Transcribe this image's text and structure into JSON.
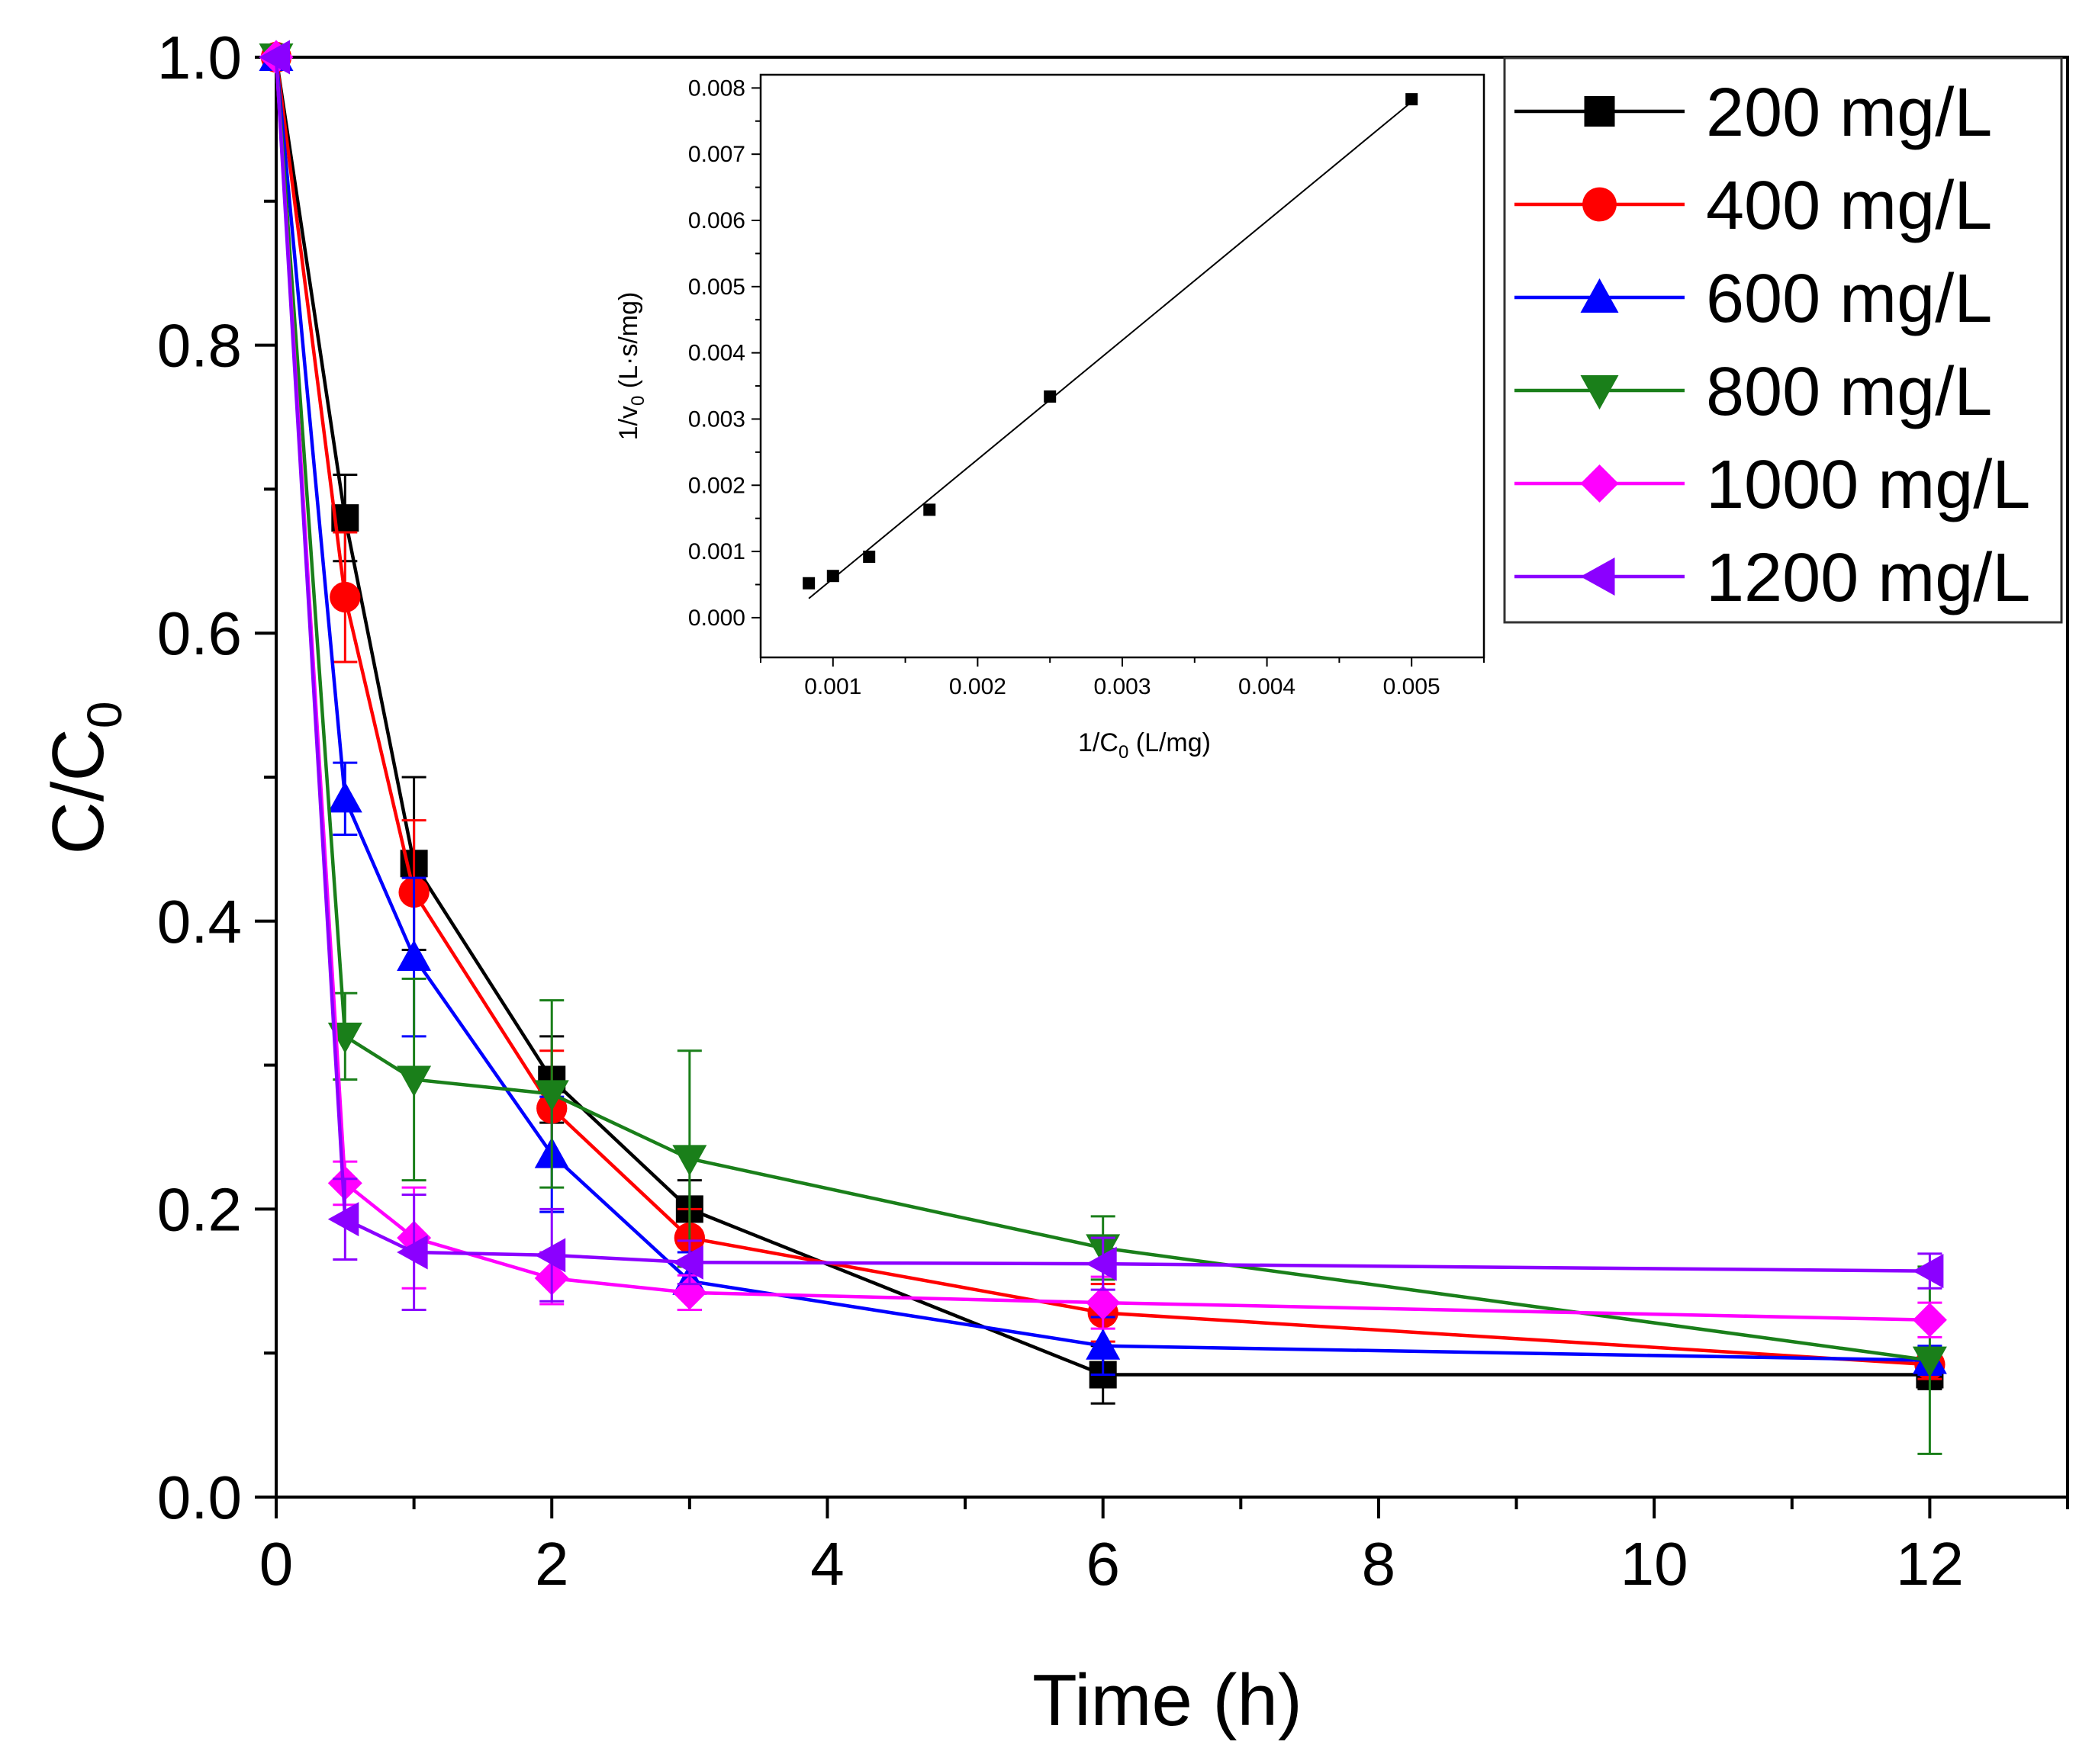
{
  "chart_data": [
    {
      "type": "line",
      "title": "",
      "xlabel": "Time (h)",
      "ylabel": "C/C0",
      "ylabel_main": "C/C",
      "ylabel_sub": "0",
      "xlim": [
        0,
        13
      ],
      "ylim": [
        0,
        1.0
      ],
      "x_ticks": [
        0,
        2,
        4,
        6,
        8,
        10,
        12
      ],
      "y_ticks": [
        0.0,
        0.2,
        0.4,
        0.6,
        0.8,
        1.0
      ],
      "x_tick_labels": [
        "0",
        "2",
        "4",
        "6",
        "8",
        "10",
        "12"
      ],
      "y_tick_labels": [
        "0.0",
        "0.2",
        "0.4",
        "0.6",
        "0.8",
        "1.0"
      ],
      "x": [
        0,
        0.5,
        1,
        2,
        3,
        6,
        12
      ],
      "legend_position": "top-right",
      "series": [
        {
          "name": "200 mg/L",
          "color": "#000000",
          "marker": "square",
          "values": [
            1.0,
            0.68,
            0.44,
            0.29,
            0.2,
            0.085,
            0.085
          ],
          "errors": [
            0,
            0.03,
            0.06,
            0.03,
            0.02,
            0.02,
            0.01
          ]
        },
        {
          "name": "400 mg/L",
          "color": "#ff0000",
          "marker": "circle",
          "values": [
            1.0,
            0.625,
            0.42,
            0.27,
            0.18,
            0.128,
            0.092
          ],
          "errors": [
            0,
            0.045,
            0.05,
            0.04,
            0.02,
            0.02,
            0.01
          ]
        },
        {
          "name": "600 mg/L",
          "color": "#0000ff",
          "marker": "triangle-up",
          "values": [
            1.0,
            0.485,
            0.375,
            0.238,
            0.15,
            0.105,
            0.095
          ],
          "errors": [
            0,
            0.025,
            0.055,
            0.04,
            0.02,
            0.02,
            0.01
          ]
        },
        {
          "name": "800 mg/L",
          "color": "#1a7f1a",
          "marker": "triangle-down",
          "values": [
            1.0,
            0.32,
            0.29,
            0.28,
            0.235,
            0.173,
            0.095
          ],
          "errors": [
            0,
            0.03,
            0.07,
            0.065,
            0.075,
            0.022,
            0.065
          ]
        },
        {
          "name": "1000 mg/L",
          "color": "#ff00ff",
          "marker": "diamond",
          "values": [
            1.0,
            0.218,
            0.18,
            0.152,
            0.142,
            0.135,
            0.123
          ],
          "errors": [
            0,
            0.015,
            0.035,
            0.018,
            0.012,
            0.018,
            0.012
          ]
        },
        {
          "name": "1200 mg/L",
          "color": "#8b00ff",
          "marker": "triangle-left",
          "values": [
            1.0,
            0.193,
            0.17,
            0.168,
            0.163,
            0.162,
            0.157
          ],
          "errors": [
            0,
            0.028,
            0.04,
            0.032,
            0.015,
            0.018,
            0.012
          ]
        }
      ]
    },
    {
      "type": "scatter",
      "title": "",
      "xlabel": "1/C0 (L/mg)",
      "xlabel_main": "1/C",
      "xlabel_sub": "0",
      "xlabel_rest": " (L/mg)",
      "ylabel": "1/v0 (L·s/mg)",
      "ylabel_main": "1/v",
      "ylabel_sub": "0",
      "ylabel_rest": " (L·s/mg)",
      "xlim": [
        0.0005,
        0.0055
      ],
      "ylim": [
        -0.0006,
        0.0082
      ],
      "x_ticks": [
        0.001,
        0.002,
        0.003,
        0.004,
        0.005
      ],
      "x_tick_labels": [
        "0.001",
        "0.002",
        "0.003",
        "0.004",
        "0.005"
      ],
      "y_ticks": [
        0.0,
        0.001,
        0.002,
        0.003,
        0.004,
        0.005,
        0.006,
        0.007,
        0.008
      ],
      "y_tick_labels": [
        "0.000",
        "0.001",
        "0.002",
        "0.003",
        "0.004",
        "0.005",
        "0.006",
        "0.007",
        "0.008"
      ],
      "x": [
        0.000833,
        0.001,
        0.00125,
        0.001667,
        0.0025,
        0.005
      ],
      "y": [
        0.00052,
        0.00063,
        0.00092,
        0.00163,
        0.00334,
        0.00783
      ],
      "fit_line": {
        "x": [
          0.000833,
          0.005
        ],
        "y": [
          0.00029,
          0.00779
        ]
      }
    }
  ]
}
